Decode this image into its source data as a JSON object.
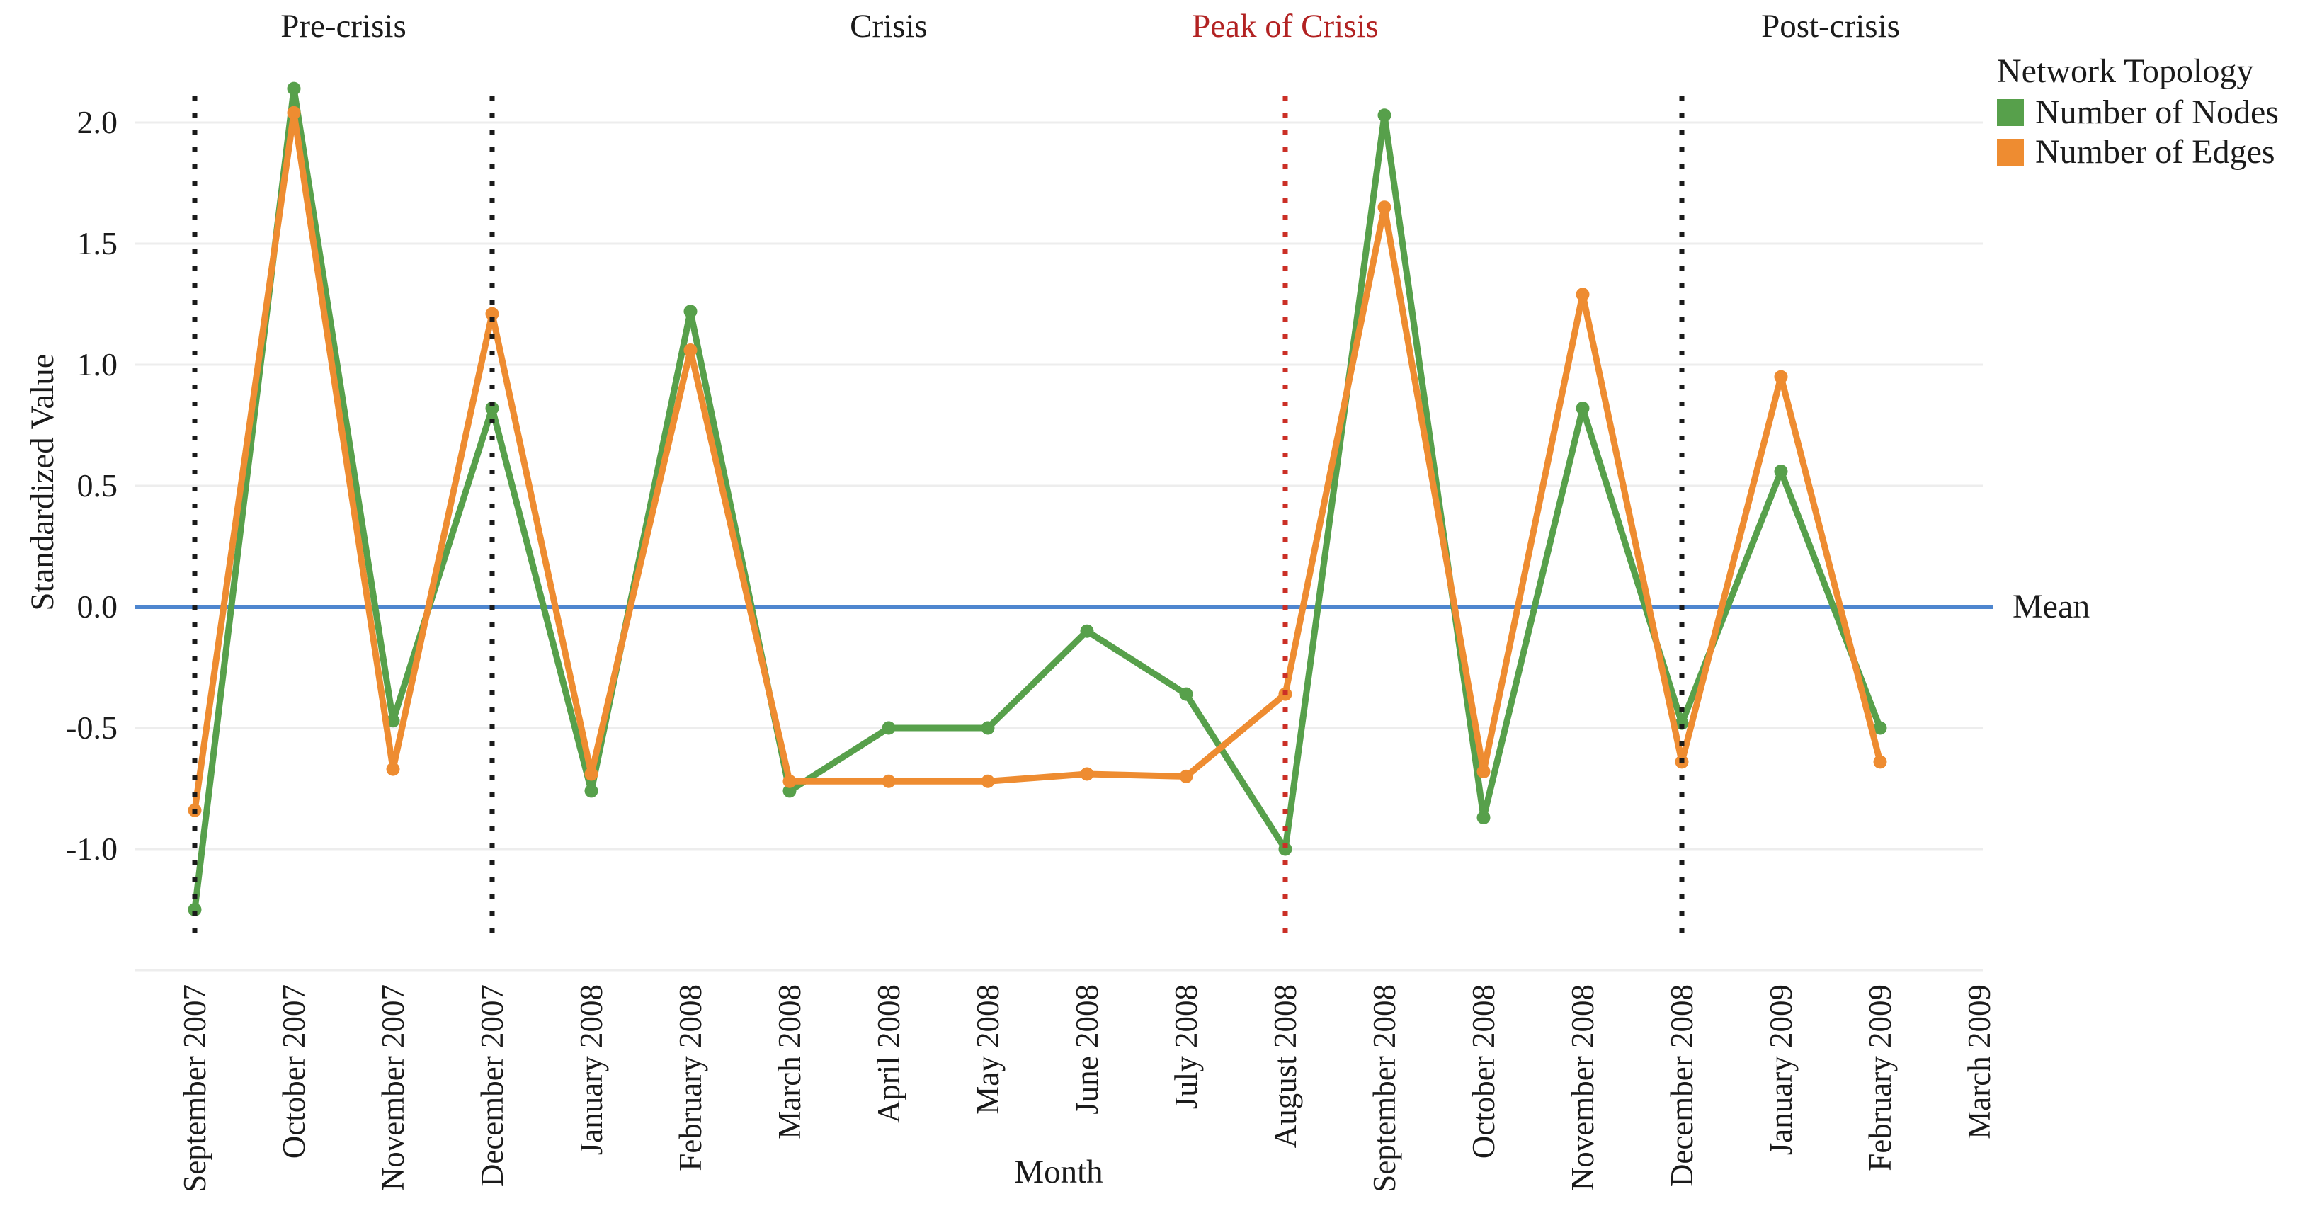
{
  "chart_data": {
    "type": "line",
    "title": "",
    "xlabel": "Month",
    "ylabel": "Standardized Value",
    "grid": "horizontal-only",
    "ylim": [
      -1.5,
      2.25
    ],
    "yticks": [
      "2.0",
      "1.5",
      "1.0",
      "0.5",
      "0.0",
      "-0.5",
      "-1.0"
    ],
    "ytick_values": [
      2.0,
      1.5,
      1.0,
      0.5,
      0.0,
      -0.5,
      -1.0
    ],
    "gridline_values": [
      2.0,
      1.5,
      1.0,
      0.5,
      0.0,
      -0.5,
      -1.0,
      -1.5
    ],
    "categories": [
      "September 2007",
      "October 2007",
      "November 2007",
      "December 2007",
      "January 2008",
      "February 2008",
      "March 2008",
      "April 2008",
      "May 2008",
      "June 2008",
      "July 2008",
      "August 2008",
      "September 2008",
      "October 2008",
      "November 2008",
      "December 2008",
      "January 2009",
      "February 2009",
      "March 2009"
    ],
    "series": [
      {
        "name": "Number of Nodes",
        "color": "#57a04b",
        "values": [
          -1.25,
          2.14,
          -0.47,
          0.82,
          -0.76,
          1.22,
          -0.76,
          -0.5,
          -0.5,
          -0.1,
          -0.36,
          -1.0,
          2.03,
          -0.87,
          0.82,
          -0.48,
          0.56,
          -0.5,
          null
        ]
      },
      {
        "name": "Number of Edges",
        "color": "#ee8c31",
        "values": [
          -0.84,
          2.04,
          -0.67,
          1.21,
          -0.69,
          1.06,
          -0.72,
          -0.72,
          -0.72,
          -0.69,
          -0.7,
          -0.36,
          1.65,
          -0.68,
          1.29,
          -0.64,
          0.95,
          -0.64,
          null
        ]
      }
    ],
    "mean_line": {
      "label": "Mean",
      "value": 0.0,
      "color": "#4e86cf"
    },
    "legend": {
      "title": "Network Topology",
      "position": "top-right"
    },
    "boundary_lines": [
      {
        "at_category": "September 2007",
        "index": 0,
        "color": "#1a1a1a",
        "style": "dotted"
      },
      {
        "at_category": "December 2007",
        "index": 3,
        "color": "#1a1a1a",
        "style": "dotted"
      },
      {
        "at_category": "August 2008",
        "index": 11,
        "color": "#cb2f26",
        "style": "dotted"
      },
      {
        "at_category": "December 2008",
        "index": 15,
        "color": "#1a1a1a",
        "style": "dotted"
      }
    ],
    "periods": [
      {
        "label": "Pre-crisis",
        "from_index": 0,
        "to_index": 3,
        "text_color": "#1b1b1b"
      },
      {
        "label": "Crisis",
        "from_index": 3,
        "to_index": 11,
        "text_color": "#1b1b1b"
      },
      {
        "label": "Peak of Crisis",
        "from_index": 11,
        "to_index": 11,
        "text_color": "#b22222"
      },
      {
        "label": "Post-crisis",
        "from_index": 15,
        "to_index": 18,
        "text_color": "#1b1b1b"
      }
    ],
    "grid_color": "#ededed",
    "text_color": "#1b1b1b"
  }
}
